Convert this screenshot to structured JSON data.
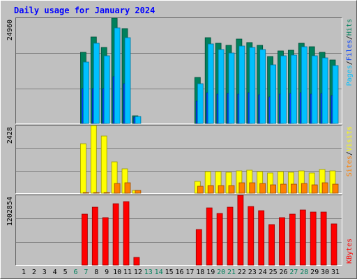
{
  "chart_data": [
    {
      "type": "bar",
      "title": "Daily usage for January 2024",
      "legend_separator": "/",
      "legend_position": "top",
      "ylim": [
        0,
        24960
      ],
      "yticks": [
        24960
      ],
      "series": [
        {
          "name": "Hits",
          "color": "#00805c",
          "values": [
            0,
            0,
            0,
            0,
            0,
            0,
            16860,
            20497,
            18018,
            24960,
            22481,
            1818,
            0,
            0,
            0,
            0,
            0,
            10910,
            20332,
            19010,
            18514,
            20002,
            19175,
            18514,
            15869,
            17192,
            17357,
            19010,
            18184,
            16861,
            15043
          ]
        },
        {
          "name": "Files",
          "color": "#0040ff",
          "values": [
            0,
            0,
            0,
            0,
            0,
            0,
            8265,
            8265,
            8265,
            11075,
            9422,
            1488,
            0,
            0,
            0,
            0,
            0,
            5290,
            7273,
            6942,
            7108,
            6942,
            7273,
            6777,
            6281,
            6942,
            7108,
            7273,
            6942,
            7108,
            6612
          ]
        },
        {
          "name": "Pages",
          "color": "#00c0ff",
          "values": [
            0,
            0,
            0,
            0,
            0,
            0,
            14547,
            19010,
            16034,
            22646,
            20332,
            1653,
            0,
            0,
            0,
            0,
            0,
            9422,
            18845,
            17522,
            16696,
            18349,
            18018,
            17522,
            13886,
            16034,
            16200,
            18184,
            16034,
            15539,
            13720
          ]
        }
      ]
    },
    {
      "type": "bar",
      "legend_separator": "/",
      "legend_position": "top",
      "ylim": [
        0,
        2428
      ],
      "yticks": [
        2428
      ],
      "series": [
        {
          "name": "Visits",
          "color": "#ffff00",
          "values": [
            0,
            0,
            0,
            0,
            0,
            0,
            1777,
            2428,
            2052,
            1126,
            876,
            100,
            0,
            0,
            0,
            0,
            0,
            425,
            776,
            776,
            751,
            801,
            826,
            776,
            726,
            776,
            751,
            801,
            726,
            851,
            801
          ]
        },
        {
          "name": "Sites",
          "color": "#ff8000",
          "values": [
            0,
            0,
            0,
            0,
            0,
            0,
            25,
            25,
            25,
            350,
            375,
            100,
            0,
            0,
            0,
            0,
            0,
            250,
            275,
            275,
            275,
            375,
            375,
            350,
            300,
            325,
            325,
            350,
            300,
            375,
            325
          ]
        }
      ]
    },
    {
      "type": "bar",
      "legend_position": "bottom",
      "ylim": [
        0,
        1202854
      ],
      "yticks": [
        1202854
      ],
      "categories": [
        "1",
        "2",
        "3",
        "4",
        "5",
        "6",
        "7",
        "8",
        "9",
        "10",
        "11",
        "12",
        "13",
        "14",
        "15",
        "16",
        "17",
        "18",
        "19",
        "20",
        "21",
        "22",
        "23",
        "24",
        "25",
        "26",
        "27",
        "28",
        "29",
        "30",
        "31"
      ],
      "category_colors": [
        "#000000",
        "#000000",
        "#000000",
        "#000000",
        "#000000",
        "#00805c",
        "#00805c",
        "#000000",
        "#000000",
        "#000000",
        "#000000",
        "#000000",
        "#00805c",
        "#00805c",
        "#000000",
        "#000000",
        "#000000",
        "#000000",
        "#000000",
        "#00805c",
        "#00805c",
        "#000000",
        "#000000",
        "#000000",
        "#000000",
        "#000000",
        "#00805c",
        "#00805c",
        "#000000",
        "#000000",
        "#000000"
      ],
      "series": [
        {
          "name": "KBytes",
          "color": "#ff0000",
          "values": [
            0,
            0,
            0,
            0,
            0,
            0,
            878000,
            998000,
            818000,
            1058000,
            1094000,
            132000,
            0,
            0,
            0,
            0,
            0,
            613000,
            986000,
            890000,
            998000,
            1202854,
            1010000,
            938000,
            698000,
            818000,
            878000,
            950000,
            914000,
            914000,
            710000
          ]
        }
      ]
    }
  ]
}
